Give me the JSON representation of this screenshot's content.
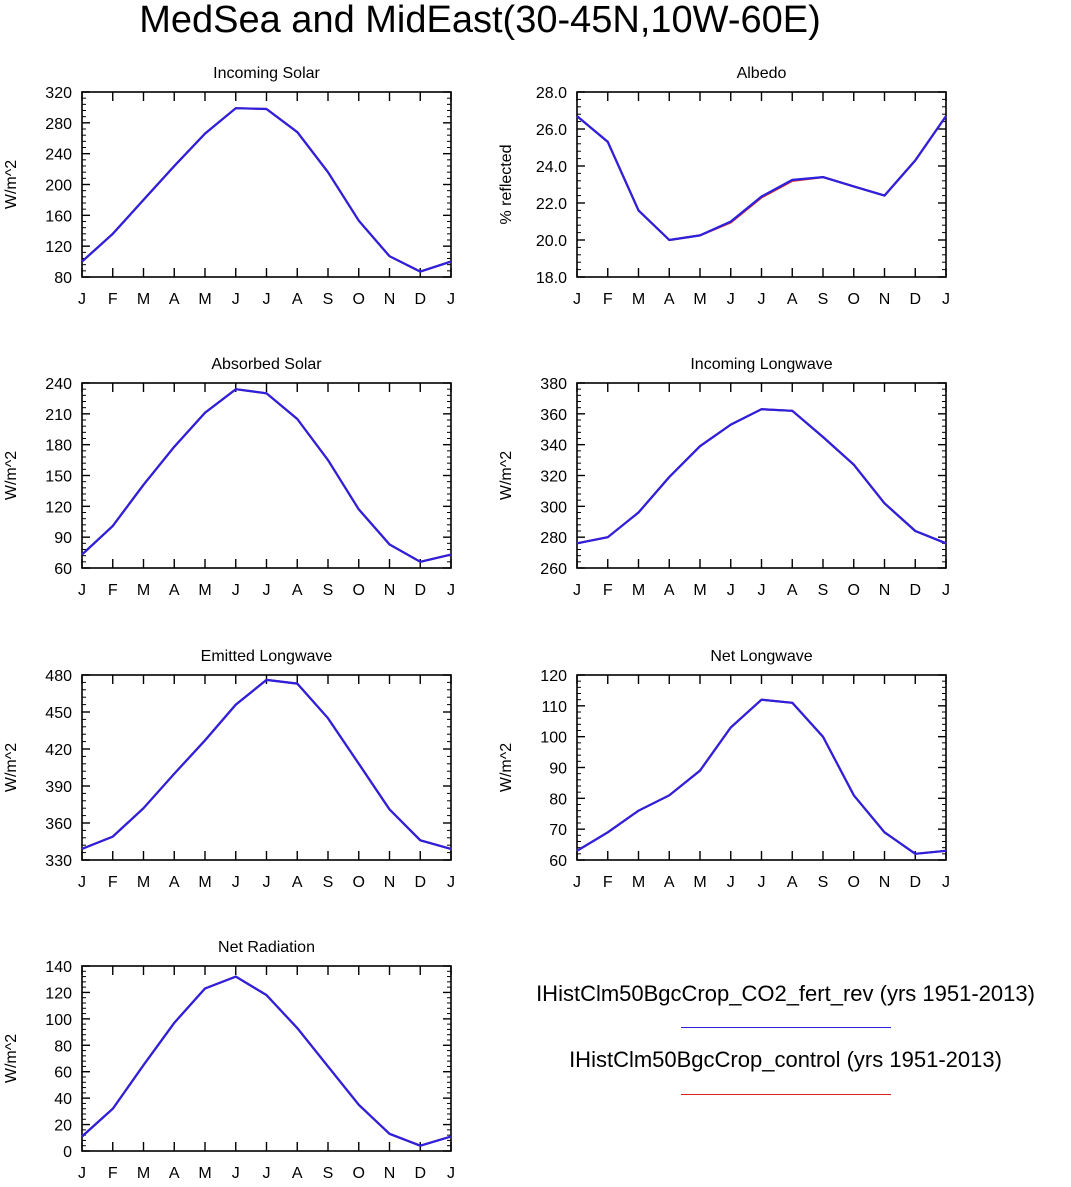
{
  "title": "MedSea and MidEast(30-45N,10W-60E)",
  "colors": {
    "series1": "#2a22e0",
    "series2": "#dd1e1e",
    "axis": "#000000"
  },
  "legend": [
    {
      "label": "IHistClm50BgcCrop_CO2_fert_rev (yrs 1951-2013)",
      "color": "#2a22e0"
    },
    {
      "label": "IHistClm50BgcCrop_control (yrs 1951-2013)",
      "color": "#dd1e1e"
    }
  ],
  "chart_data": [
    {
      "type": "line",
      "title": "Incoming Solar",
      "ylabel": "W/m^2",
      "categories": [
        "J",
        "F",
        "M",
        "A",
        "M",
        "J",
        "J",
        "A",
        "S",
        "O",
        "N",
        "D",
        "J"
      ],
      "ylim": [
        80,
        320
      ],
      "yticks": [
        "80",
        "120",
        "160",
        "200",
        "240",
        "280",
        "320"
      ],
      "series": [
        {
          "name": "IHistClm50BgcCrop_CO2_fert_rev (yrs 1951-2013)",
          "values": [
            100,
            136,
            180,
            224,
            266,
            299,
            298,
            268,
            216,
            153,
            107,
            87,
            100
          ]
        },
        {
          "name": "IHistClm50BgcCrop_control (yrs 1951-2013)",
          "values": [
            100,
            136,
            180,
            224,
            266,
            299,
            298,
            268,
            216,
            153,
            107,
            87,
            100
          ]
        }
      ]
    },
    {
      "type": "line",
      "title": "Albedo",
      "ylabel": "% reflected",
      "categories": [
        "J",
        "F",
        "M",
        "A",
        "M",
        "J",
        "J",
        "A",
        "S",
        "O",
        "N",
        "D",
        "J"
      ],
      "ylim": [
        18,
        28
      ],
      "yticks": [
        "18.0",
        "20.0",
        "22.0",
        "24.0",
        "26.0",
        "28.0"
      ],
      "series": [
        {
          "name": "IHistClm50BgcCrop_CO2_fert_rev (yrs 1951-2013)",
          "values": [
            26.7,
            25.3,
            21.6,
            20.0,
            20.25,
            21.0,
            22.35,
            23.25,
            23.4,
            22.9,
            22.4,
            24.3,
            26.7
          ]
        },
        {
          "name": "IHistClm50BgcCrop_control (yrs 1951-2013)",
          "values": [
            26.7,
            25.3,
            21.6,
            20.0,
            20.25,
            20.95,
            22.3,
            23.2,
            23.4,
            22.9,
            22.4,
            24.3,
            26.7
          ]
        }
      ]
    },
    {
      "type": "line",
      "title": "Absorbed Solar",
      "ylabel": "W/m^2",
      "categories": [
        "J",
        "F",
        "M",
        "A",
        "M",
        "J",
        "J",
        "A",
        "S",
        "O",
        "N",
        "D",
        "J"
      ],
      "ylim": [
        60,
        240
      ],
      "yticks": [
        "60",
        "90",
        "120",
        "150",
        "180",
        "210",
        "240"
      ],
      "series": [
        {
          "name": "IHistClm50BgcCrop_CO2_fert_rev (yrs 1951-2013)",
          "values": [
            73,
            101,
            141,
            178,
            211,
            234,
            230,
            205,
            165,
            117,
            83,
            66,
            73
          ]
        },
        {
          "name": "IHistClm50BgcCrop_control (yrs 1951-2013)",
          "values": [
            73,
            101,
            141,
            178,
            211,
            234,
            230,
            205,
            165,
            117,
            83,
            66,
            73
          ]
        }
      ]
    },
    {
      "type": "line",
      "title": "Incoming Longwave",
      "ylabel": "W/m^2",
      "categories": [
        "J",
        "F",
        "M",
        "A",
        "M",
        "J",
        "J",
        "A",
        "S",
        "O",
        "N",
        "D",
        "J"
      ],
      "ylim": [
        260,
        380
      ],
      "yticks": [
        "260",
        "280",
        "300",
        "320",
        "340",
        "360",
        "380"
      ],
      "series": [
        {
          "name": "IHistClm50BgcCrop_CO2_fert_rev (yrs 1951-2013)",
          "values": [
            276,
            280,
            296,
            319,
            339,
            353,
            363,
            362,
            345,
            327,
            302,
            284,
            276
          ]
        },
        {
          "name": "IHistClm50BgcCrop_control (yrs 1951-2013)",
          "values": [
            276,
            280,
            296,
            319,
            339,
            353,
            363,
            362,
            345,
            327,
            302,
            284,
            276
          ]
        }
      ]
    },
    {
      "type": "line",
      "title": "Emitted Longwave",
      "ylabel": "W/m^2",
      "categories": [
        "J",
        "F",
        "M",
        "A",
        "M",
        "J",
        "J",
        "A",
        "S",
        "O",
        "N",
        "D",
        "J"
      ],
      "ylim": [
        330,
        480
      ],
      "yticks": [
        "330",
        "360",
        "390",
        "420",
        "450",
        "480"
      ],
      "series": [
        {
          "name": "IHistClm50BgcCrop_CO2_fert_rev (yrs 1951-2013)",
          "values": [
            339,
            349,
            372,
            400,
            427,
            456,
            476,
            473,
            445,
            408,
            371,
            346,
            339
          ]
        },
        {
          "name": "IHistClm50BgcCrop_control (yrs 1951-2013)",
          "values": [
            339,
            349,
            372,
            400,
            427,
            456,
            476,
            473,
            445,
            408,
            371,
            346,
            339
          ]
        }
      ]
    },
    {
      "type": "line",
      "title": "Net Longwave",
      "ylabel": "W/m^2",
      "categories": [
        "J",
        "F",
        "M",
        "A",
        "M",
        "J",
        "J",
        "A",
        "S",
        "O",
        "N",
        "D",
        "J"
      ],
      "ylim": [
        60,
        120
      ],
      "yticks": [
        "60",
        "70",
        "80",
        "90",
        "100",
        "110",
        "120"
      ],
      "series": [
        {
          "name": "IHistClm50BgcCrop_CO2_fert_rev (yrs 1951-2013)",
          "values": [
            63,
            69,
            76,
            81,
            89,
            103,
            112,
            111,
            100,
            81,
            69,
            62,
            63
          ]
        },
        {
          "name": "IHistClm50BgcCrop_control (yrs 1951-2013)",
          "values": [
            63,
            69,
            76,
            81,
            89,
            103,
            112,
            111,
            100,
            81,
            69,
            62,
            63
          ]
        }
      ]
    },
    {
      "type": "line",
      "title": "Net Radiation",
      "ylabel": "W/m^2",
      "categories": [
        "J",
        "F",
        "M",
        "A",
        "M",
        "J",
        "J",
        "A",
        "S",
        "O",
        "N",
        "D",
        "J"
      ],
      "ylim": [
        0,
        140
      ],
      "yticks": [
        "0",
        "20",
        "40",
        "60",
        "80",
        "100",
        "120",
        "140"
      ],
      "series": [
        {
          "name": "IHistClm50BgcCrop_CO2_fert_rev (yrs 1951-2013)",
          "values": [
            11,
            32,
            65,
            97,
            123,
            132,
            118,
            93,
            64,
            35,
            13,
            4,
            11
          ]
        },
        {
          "name": "IHistClm50BgcCrop_control (yrs 1951-2013)",
          "values": [
            11,
            32,
            65,
            97,
            123,
            132,
            118,
            93,
            64,
            35,
            13,
            4,
            11
          ]
        }
      ]
    }
  ]
}
